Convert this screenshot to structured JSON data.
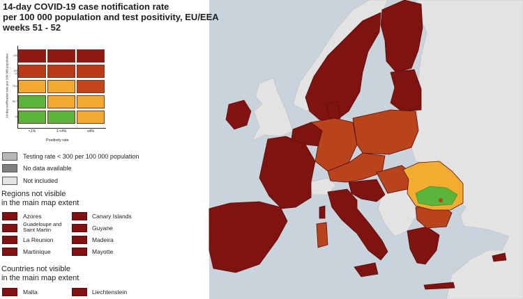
{
  "title": {
    "line1": "14-day COVID-19 case notification rate",
    "line2": "per 100 000 population and test positivity, EU/EEA",
    "line3": "weeks 51 - 52"
  },
  "matrix": {
    "y_axis_label": "14-day notification rate per 100 000 population",
    "x_axis_label": "Positivity rate",
    "x_ticks": [
      "<1%",
      "1-<4%",
      "≥4%"
    ],
    "y_ticks": [
      "≥200",
      "100-199",
      "75-99",
      "50-74",
      "<50"
    ],
    "colors": [
      [
        "#8e1a12",
        "#8e1a12",
        "#8e1a12"
      ],
      [
        "#b83a16",
        "#b83a16",
        "#b83a16"
      ],
      [
        "#f2a930",
        "#f2a930",
        "#c4461a"
      ],
      [
        "#5ab53a",
        "#f2a930",
        "#f2a930"
      ],
      [
        "#5ab53a",
        "#5ab53a",
        "#f2a930"
      ]
    ]
  },
  "legend": {
    "testing_low": {
      "label": "Testing rate < 300 per 100 000 population",
      "color": "#b7b7b7"
    },
    "no_data": {
      "label": "No data available",
      "color": "#808080"
    },
    "not_included": {
      "label": "Not included",
      "color": "#e3e3e3"
    }
  },
  "regions_heading": {
    "line1": "Regions not visible",
    "line2": "in the main map extent"
  },
  "regions": [
    {
      "label": "Azores"
    },
    {
      "label": "Canary Islands"
    },
    {
      "label": "Guadeloupe and Saint Martin"
    },
    {
      "label": "Guyane"
    },
    {
      "label": "La Reunion"
    },
    {
      "label": "Madeira"
    },
    {
      "label": "Martinique"
    },
    {
      "label": "Mayotte"
    }
  ],
  "countries_heading": {
    "line1": "Countries not visible",
    "line2": "in the main map extent"
  },
  "countries": [
    {
      "label": "Malta"
    },
    {
      "label": "Liechtenstein"
    }
  ],
  "colors": {
    "sea": "#c9d3dc",
    "dark_red": "#7e1310",
    "red_orange": "#b9431a",
    "orange": "#f2ad30",
    "green": "#5ab53a",
    "not_included": "#e3e3e3",
    "border": "#5a0d0c"
  }
}
